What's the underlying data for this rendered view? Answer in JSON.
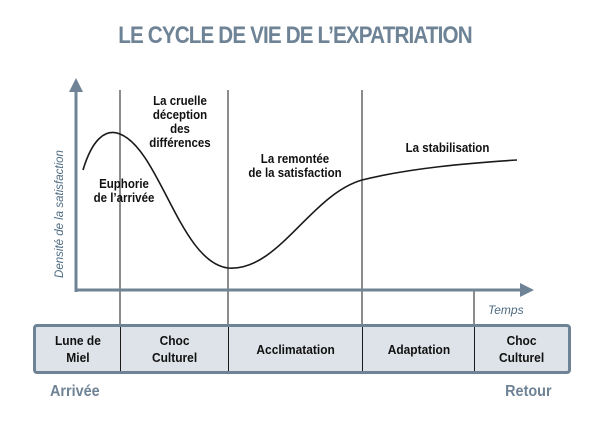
{
  "title": "LE CYCLE DE VIE DE L’EXPATRIATION",
  "axes": {
    "y_label": "Densité de la satisfaction",
    "x_label": "Temps"
  },
  "curve_labels": {
    "euphorie": [
      "Euphorie",
      "de l’arrivée"
    ],
    "deception": [
      "La cruelle",
      "déception",
      "des",
      "différences"
    ],
    "remontee": [
      "La remontée",
      "de la satisfaction"
    ],
    "stabilisation": [
      "La stabilisation"
    ]
  },
  "phases": [
    {
      "lines": [
        "Lune de",
        "Miel"
      ]
    },
    {
      "lines": [
        "Choc",
        "Culturel"
      ]
    },
    {
      "lines": [
        "Acclimatation"
      ]
    },
    {
      "lines": [
        "Adaptation"
      ]
    },
    {
      "lines": [
        "Choc",
        "Culturel"
      ]
    }
  ],
  "start_label": "Arrivée",
  "end_label": "Retour",
  "colors": {
    "title": "#6e8395",
    "axis": "#6e8395",
    "axis_labels": "#4e6b82",
    "curve": "#1a1a1a",
    "phase_fill": "#dde3e8",
    "phase_border": "#6e8395",
    "ends": "#6e8395"
  }
}
